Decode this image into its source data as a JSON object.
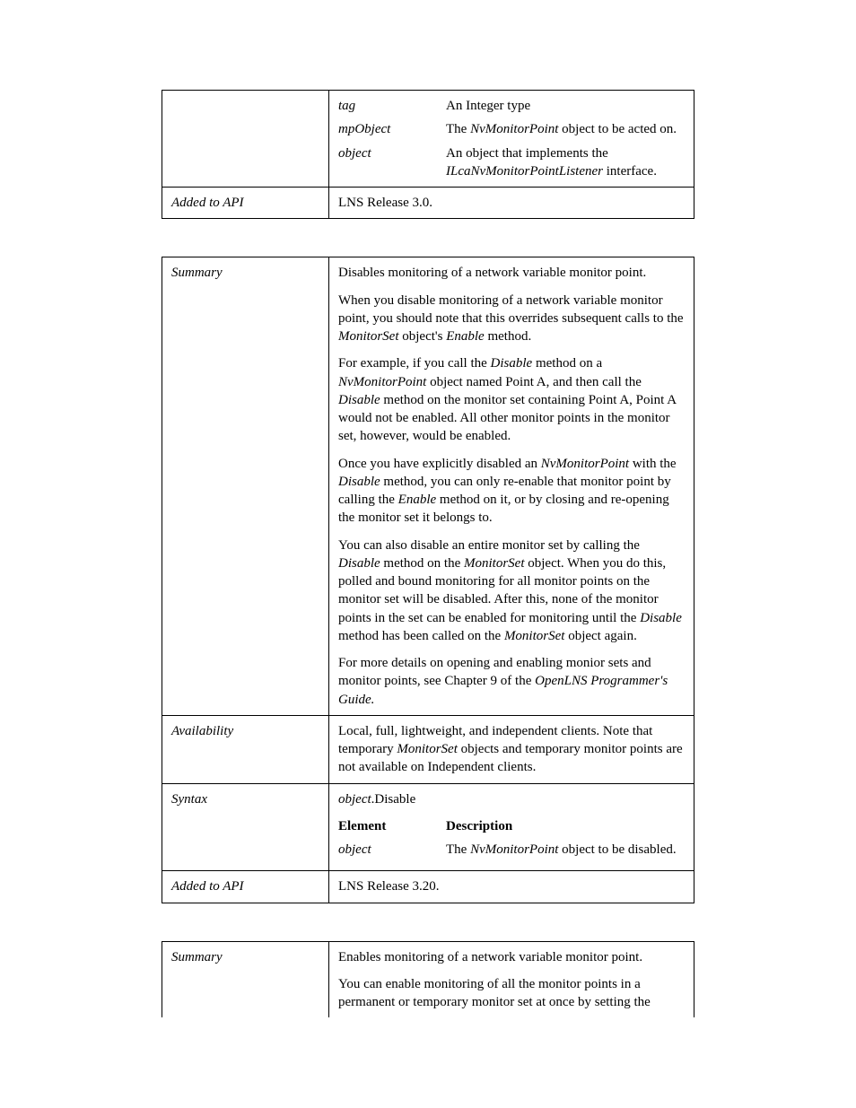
{
  "table1": {
    "row1": {
      "label": "",
      "param1_name": "tag",
      "param1_desc": "An Integer type",
      "param2_name": "mpObject",
      "param2_desc_pre": "The ",
      "param2_desc_em": "NvMonitorPoint",
      "param2_desc_post": " object to be acted on.",
      "param3_name": "object",
      "param3_desc_pre": "An object that implements the ",
      "param3_desc_em": "ILcaNvMonitorPointListener",
      "param3_desc_post": " interface."
    },
    "row2": {
      "label": "Added to API",
      "value": "LNS Release 3.0."
    }
  },
  "table2": {
    "summary": {
      "label": "Summary",
      "p1": "Disables monitoring of a network variable monitor point.",
      "p2a": "When you disable monitoring of a network variable monitor point, you should note that this overrides subsequent calls to the ",
      "p2em1": "MonitorSet",
      "p2b": " object's ",
      "p2em2": "Enable",
      "p2c": " method.",
      "p3a": "For example, if you call the ",
      "p3em1": "Disable",
      "p3b": " method on a ",
      "p3em2": "NvMonitorPoint",
      "p3c": " object named Point A, and then call the ",
      "p3em3": "Disable",
      "p3d": " method on the monitor set containing Point A, Point A would not be enabled.  All other monitor points in the monitor set, however, would be enabled.",
      "p4a": "Once you have explicitly disabled an ",
      "p4em1": "NvMonitorPoint",
      "p4b": " with the ",
      "p4em2": "Disable",
      "p4c": " method, you can only re-enable that monitor point by calling the ",
      "p4em3": "Enable",
      "p4d": " method on it, or by closing and re-opening the monitor set it belongs to.",
      "p5a": "You can also disable an entire monitor set by calling the ",
      "p5em1": "Disable",
      "p5b": " method on the ",
      "p5em2": "MonitorSet",
      "p5c": " object. When you do this, polled and bound monitoring for all monitor points on the monitor set will be disabled. After this, none of the monitor points in the set can be enabled for monitoring until the ",
      "p5em3": "Disable",
      "p5d": " method has been called on the ",
      "p5em4": "MonitorSet",
      "p5e": " object again.",
      "p6a": "For more details on opening and enabling monior sets and monitor points, see Chapter 9 of the ",
      "p6em1": "OpenLNS Programmer's Guide.",
      "p6b": ""
    },
    "availability": {
      "label": "Availability",
      "a": "Local, full, lightweight, and independent clients. Note that temporary ",
      "em1": "MonitorSet",
      "b": " objects and temporary monitor points are not available on Independent clients."
    },
    "syntax": {
      "label": "Syntax",
      "sig_obj": "object",
      "sig_dot": ".",
      "sig_method": "Disable",
      "header_elem": "Element",
      "header_desc": "Description",
      "p1_name": "object",
      "p1_desc_a": "The ",
      "p1_desc_em": "NvMonitorPoint",
      "p1_desc_b": " object to be disabled."
    },
    "added": {
      "label": "Added to API",
      "value": "LNS Release 3.20."
    }
  },
  "table3": {
    "summary": {
      "label": "Summary",
      "p1": "Enables monitoring of a network variable monitor point.",
      "p2": "You can enable monitoring of all the monitor points in a permanent or temporary monitor set at once by setting the"
    }
  }
}
